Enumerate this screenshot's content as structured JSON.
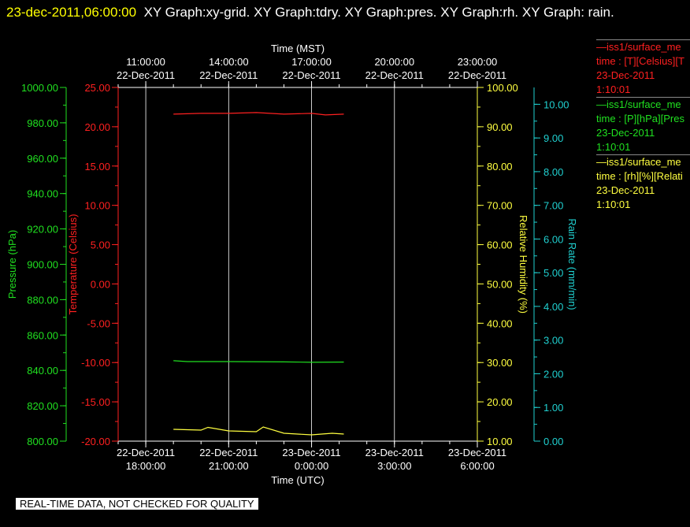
{
  "header": {
    "timestamp": "23-dec-2011,06:00:00",
    "titles": "XY Graph:xy-grid.  XY Graph:tdry.  XY Graph:pres.  XY Graph:rh.  XY Graph: rain."
  },
  "footer": {
    "notice": "REAL-TIME DATA, NOT CHECKED FOR QUALITY"
  },
  "legend": [
    {
      "line1": "—iss1/surface_me",
      "line2": "time : [T][Celsius][T",
      "line3": "23-Dec-2011",
      "line4": "1:10:01",
      "color": "#ff2020"
    },
    {
      "line1": "—iss1/surface_me",
      "line2": "time : [P][hPa][Pres",
      "line3": "23-Dec-2011",
      "line4": "1:10:01",
      "color": "#20e020"
    },
    {
      "line1": "—iss1/surface_me",
      "line2": "time : [rh][%][Relati",
      "line3": "23-Dec-2011",
      "line4": "1:10:01",
      "color": "#ffff40"
    }
  ],
  "chart_data": {
    "type": "line",
    "x_top_title": "Time (MST)",
    "x_bottom_title": "Time (UTC)",
    "x_top_ticks": [
      {
        "time": "11:00:00",
        "date": "22-Dec-2011"
      },
      {
        "time": "14:00:00",
        "date": "22-Dec-2011"
      },
      {
        "time": "17:00:00",
        "date": "22-Dec-2011"
      },
      {
        "time": "20:00:00",
        "date": "22-Dec-2011"
      },
      {
        "time": "23:00:00",
        "date": "22-Dec-2011"
      }
    ],
    "x_bottom_ticks": [
      {
        "date": "22-Dec-2011",
        "time": "18:00:00"
      },
      {
        "date": "22-Dec-2011",
        "time": "21:00:00"
      },
      {
        "date": "23-Dec-2011",
        "time": "0:00:00"
      },
      {
        "date": "23-Dec-2011",
        "time": "3:00:00"
      },
      {
        "date": "23-Dec-2011",
        "time": "6:00:00"
      }
    ],
    "x_range_utc": [
      "2011-12-22 17:00",
      "2011-12-23 06:00"
    ],
    "grid": true,
    "axes": {
      "pressure": {
        "label": "Pressure (hPa)",
        "min": 800,
        "max": 1000,
        "ticks": [
          "800.00",
          "820.00",
          "840.00",
          "860.00",
          "880.00",
          "900.00",
          "920.00",
          "940.00",
          "960.00",
          "980.00",
          "1000.00"
        ],
        "color": "#20e020"
      },
      "temperature": {
        "label": "Temperature (Celsius)",
        "min": -20,
        "max": 25,
        "ticks": [
          "-20.00",
          "-15.00",
          "-10.00",
          "-5.00",
          "0.00",
          "5.00",
          "10.00",
          "15.00",
          "20.00",
          "25.00"
        ],
        "color": "#ff2020"
      },
      "humidity": {
        "label": "Relative Humidity (%)",
        "min": 10,
        "max": 100,
        "ticks": [
          "10.00",
          "20.00",
          "30.00",
          "40.00",
          "50.00",
          "60.00",
          "70.00",
          "80.00",
          "90.00",
          "100.00"
        ],
        "color": "#ffff40"
      },
      "rain": {
        "label": "Rain Rate (mm/min)",
        "min": 0,
        "max": 10.5,
        "ticks": [
          "0.00",
          "1.00",
          "2.00",
          "3.00",
          "4.00",
          "5.00",
          "6.00",
          "7.00",
          "8.00",
          "9.00",
          "10.00"
        ],
        "color": "#20d0d0"
      }
    },
    "series": [
      {
        "axis": "temperature",
        "color": "#ff2020",
        "x": [
          "2011-12-22 19:00",
          "2011-12-22 20:00",
          "2011-12-22 21:00",
          "2011-12-22 22:00",
          "2011-12-22 23:00",
          "2011-12-23 00:00",
          "2011-12-23 00:30",
          "2011-12-23 01:10"
        ],
        "y": [
          21.6,
          21.7,
          21.7,
          21.8,
          21.6,
          21.7,
          21.5,
          21.6
        ]
      },
      {
        "axis": "pressure",
        "color": "#20e020",
        "x": [
          "2011-12-22 19:00",
          "2011-12-22 19:30",
          "2011-12-22 21:00",
          "2011-12-22 23:00",
          "2011-12-23 00:00",
          "2011-12-23 01:10"
        ],
        "y": [
          845.5,
          845.0,
          845.0,
          844.8,
          844.6,
          844.7
        ]
      },
      {
        "axis": "humidity",
        "color": "#ffff40",
        "x": [
          "2011-12-22 19:00",
          "2011-12-22 20:00",
          "2011-12-22 20:15",
          "2011-12-22 21:00",
          "2011-12-22 22:00",
          "2011-12-22 22:15",
          "2011-12-22 23:00",
          "2011-12-23 00:00",
          "2011-12-23 00:45",
          "2011-12-23 01:10"
        ],
        "y": [
          13.0,
          12.8,
          13.5,
          12.6,
          12.4,
          13.6,
          12.0,
          11.6,
          12.0,
          11.8
        ]
      }
    ]
  }
}
